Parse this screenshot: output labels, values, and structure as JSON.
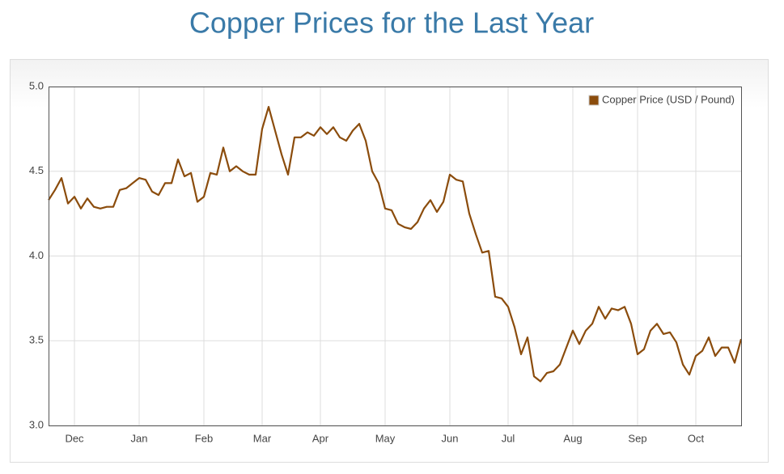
{
  "chart_data": {
    "type": "line",
    "title": "Copper Prices for the Last Year",
    "categories": [
      null,
      null,
      null,
      null,
      "Dec",
      null,
      null,
      null,
      null,
      null,
      null,
      null,
      null,
      null,
      "Jan",
      null,
      null,
      null,
      null,
      null,
      null,
      null,
      null,
      null,
      "Feb",
      null,
      null,
      null,
      null,
      null,
      null,
      null,
      null,
      "Mar",
      null,
      null,
      null,
      null,
      null,
      null,
      null,
      null,
      "Apr",
      null,
      null,
      null,
      null,
      null,
      null,
      null,
      null,
      null,
      "May",
      null,
      null,
      null,
      null,
      null,
      null,
      null,
      null,
      null,
      "Jun",
      null,
      null,
      null,
      null,
      null,
      null,
      null,
      null,
      "Jul",
      null,
      null,
      null,
      null,
      null,
      null,
      null,
      null,
      null,
      "Aug",
      null,
      null,
      null,
      null,
      null,
      null,
      null,
      null,
      null,
      "Sep",
      null,
      null,
      null,
      null,
      null,
      null,
      null,
      null,
      "Oct",
      null,
      null,
      null,
      null,
      null,
      null,
      null
    ],
    "series": [
      {
        "name": "Copper Price (USD / Pound)",
        "color": "#8b4c0c",
        "values": [
          4.33,
          4.39,
          4.46,
          4.31,
          4.35,
          4.28,
          4.34,
          4.29,
          4.28,
          4.29,
          4.29,
          4.39,
          4.4,
          4.43,
          4.46,
          4.45,
          4.38,
          4.36,
          4.43,
          4.43,
          4.57,
          4.47,
          4.49,
          4.32,
          4.35,
          4.49,
          4.48,
          4.64,
          4.5,
          4.53,
          4.5,
          4.48,
          4.48,
          4.75,
          4.88,
          4.74,
          4.6,
          4.48,
          4.7,
          4.7,
          4.73,
          4.71,
          4.76,
          4.72,
          4.76,
          4.7,
          4.68,
          4.74,
          4.78,
          4.68,
          4.5,
          4.43,
          4.28,
          4.27,
          4.19,
          4.17,
          4.16,
          4.2,
          4.28,
          4.33,
          4.26,
          4.32,
          4.48,
          4.45,
          4.44,
          4.25,
          4.13,
          4.02,
          4.03,
          3.76,
          3.75,
          3.7,
          3.58,
          3.42,
          3.52,
          3.29,
          3.26,
          3.31,
          3.32,
          3.36,
          3.46,
          3.56,
          3.48,
          3.56,
          3.6,
          3.7,
          3.63,
          3.69,
          3.68,
          3.7,
          3.6,
          3.42,
          3.45,
          3.56,
          3.6,
          3.54,
          3.55,
          3.49,
          3.36,
          3.3,
          3.41,
          3.44,
          3.52,
          3.41,
          3.46,
          3.46,
          3.37,
          3.51
        ]
      }
    ],
    "ylim": [
      3,
      5
    ],
    "yticks": [
      {
        "value": 3,
        "label": "3.0"
      },
      3.5,
      {
        "value": 4,
        "label": "4.0"
      },
      4.5,
      {
        "value": 5,
        "label": "5.0"
      }
    ],
    "grid": true,
    "legend": "top-right"
  }
}
